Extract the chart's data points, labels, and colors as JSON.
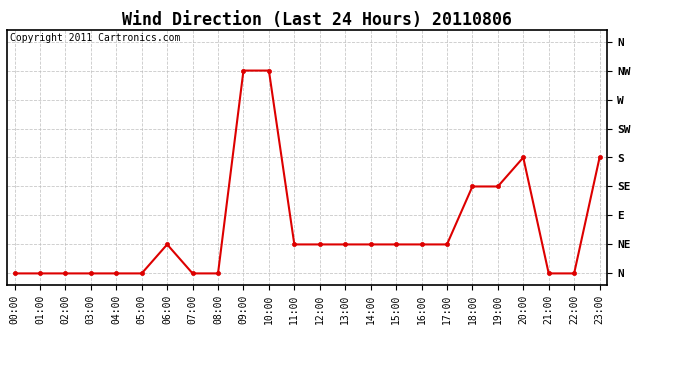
{
  "title": "Wind Direction (Last 24 Hours) 20110806",
  "copyright_text": "Copyright 2011 Cartronics.com",
  "x_labels": [
    "00:00",
    "01:00",
    "02:00",
    "03:00",
    "04:00",
    "05:00",
    "06:00",
    "07:00",
    "08:00",
    "09:00",
    "10:00",
    "11:00",
    "12:00",
    "13:00",
    "14:00",
    "15:00",
    "16:00",
    "17:00",
    "18:00",
    "19:00",
    "20:00",
    "21:00",
    "22:00",
    "23:00"
  ],
  "y_labels": [
    "N",
    "NE",
    "E",
    "SE",
    "S",
    "SW",
    "W",
    "NW",
    "N"
  ],
  "y_ticks": [
    0,
    45,
    90,
    135,
    180,
    225,
    270,
    315,
    360
  ],
  "data_hours": [
    0,
    1,
    2,
    3,
    4,
    5,
    6,
    7,
    8,
    9,
    10,
    11,
    12,
    13,
    14,
    15,
    16,
    17,
    18,
    19,
    20,
    21,
    22,
    23
  ],
  "data_directions": [
    0,
    0,
    0,
    0,
    0,
    0,
    45,
    0,
    0,
    315,
    315,
    45,
    45,
    45,
    45,
    45,
    45,
    45,
    135,
    135,
    180,
    0,
    0,
    180
  ],
  "line_color": "#dd0000",
  "marker_color": "#dd0000",
  "background_color": "#ffffff",
  "grid_color": "#bbbbbb",
  "title_fontsize": 12,
  "copyright_fontsize": 7,
  "tick_fontsize": 7,
  "ytick_fontsize": 8
}
